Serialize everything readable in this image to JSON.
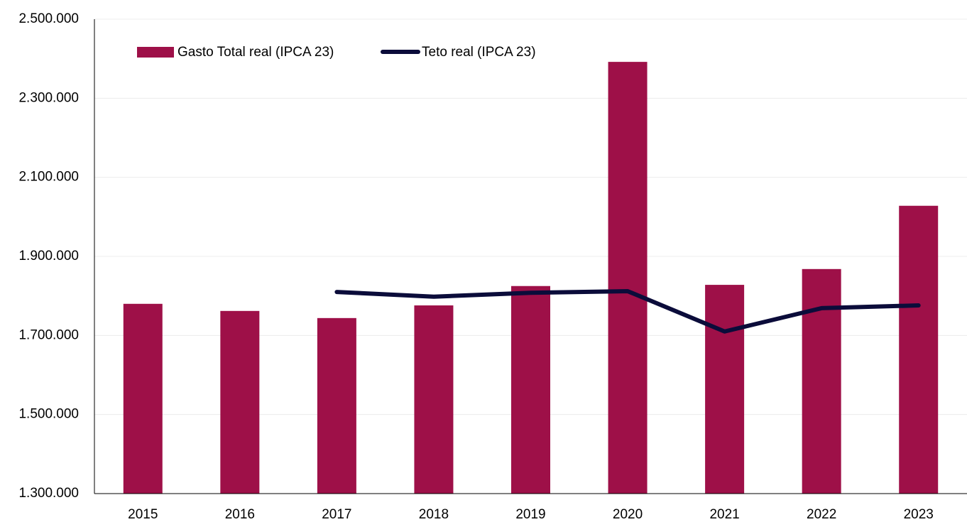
{
  "chart_data": {
    "type": "bar_line",
    "categories": [
      "2015",
      "2016",
      "2017",
      "2018",
      "2019",
      "2020",
      "2021",
      "2022",
      "2023"
    ],
    "series": [
      {
        "name": "Gasto Total real (IPCA 23)",
        "type": "bar",
        "color": "#9e1048",
        "values": [
          1780000,
          1762000,
          1744000,
          1776000,
          1825000,
          2392000,
          1828000,
          1868000,
          2028000
        ]
      },
      {
        "name": "Teto real (IPCA 23)",
        "type": "line",
        "color": "#0b0c3a",
        "values": [
          null,
          null,
          1810000,
          1798000,
          1808000,
          1812000,
          1710000,
          1769000,
          1776000
        ]
      }
    ],
    "ylim": [
      1300000,
      2500000
    ],
    "yticks": [
      {
        "value": 1300000,
        "label": "1.300.000"
      },
      {
        "value": 1500000,
        "label": "1.500.000"
      },
      {
        "value": 1700000,
        "label": "1.700.000"
      },
      {
        "value": 1900000,
        "label": "1.900.000"
      },
      {
        "value": 2100000,
        "label": "2.100.000"
      },
      {
        "value": 2300000,
        "label": "2.300.000"
      },
      {
        "value": 2500000,
        "label": "2.500.000"
      }
    ],
    "grid": true
  }
}
